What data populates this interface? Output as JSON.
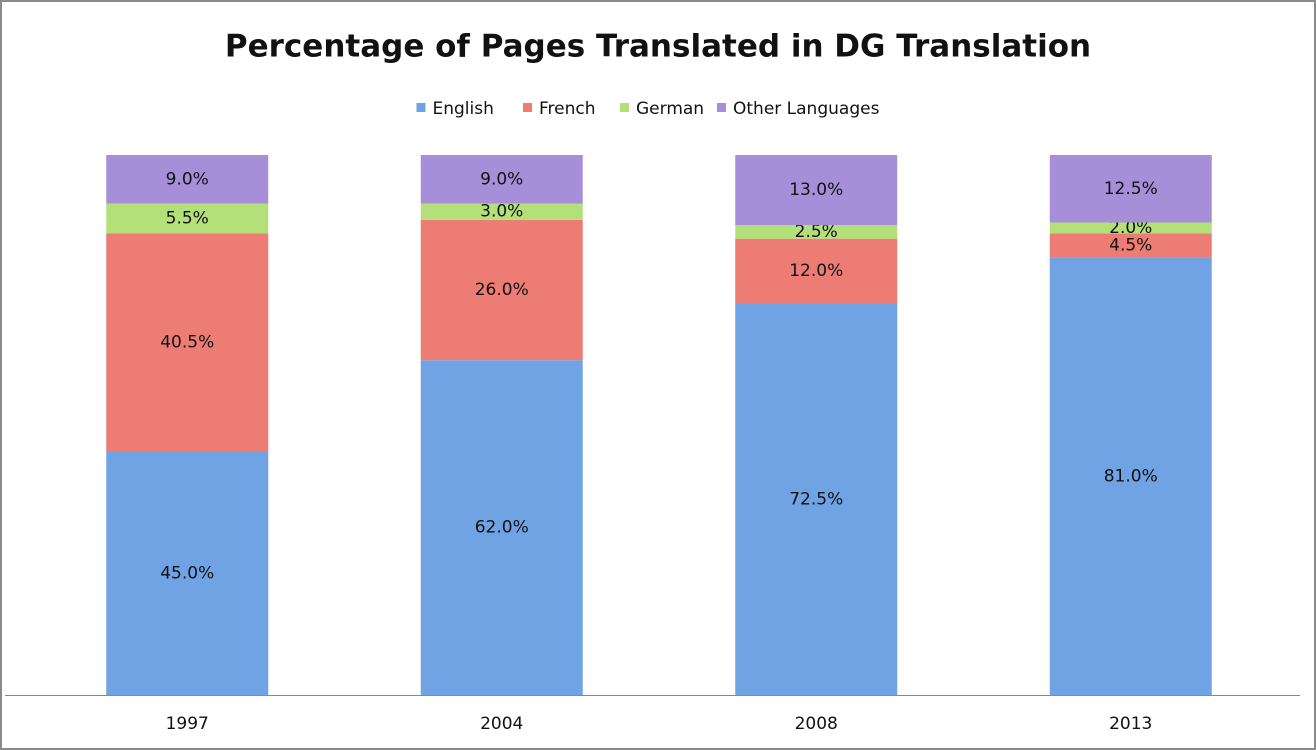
{
  "chart_data": {
    "type": "bar",
    "stacked": "percent",
    "title": "Percentage of Pages Translated in DG Translation",
    "categories": [
      "1997",
      "2004",
      "2008",
      "2013"
    ],
    "legend": "top",
    "series": [
      {
        "name": "English",
        "color": "#6fa3e4",
        "values": [
          45,
          62,
          72.5,
          81
        ],
        "value_labels": [
          "45.0%",
          "62.0%",
          "72.5%",
          "81.0%"
        ]
      },
      {
        "name": "French",
        "color": "#ec7c74",
        "values": [
          40.5,
          26,
          12,
          4.5
        ],
        "value_labels": [
          "40.5%",
          "26.0%",
          "12.0%",
          "4.5%"
        ]
      },
      {
        "name": "German",
        "color": "#b4e07a",
        "values": [
          5.5,
          3,
          2.5,
          2
        ],
        "value_labels": [
          "5.5%",
          "3.0%",
          "2.5%",
          "2.0%"
        ]
      },
      {
        "name": "Other Languages",
        "color": "#a68fd8",
        "values": [
          9,
          9,
          13,
          12.5
        ],
        "value_labels": [
          "9.0%",
          "9.0%",
          "13.0%",
          "12.5%"
        ]
      }
    ]
  }
}
